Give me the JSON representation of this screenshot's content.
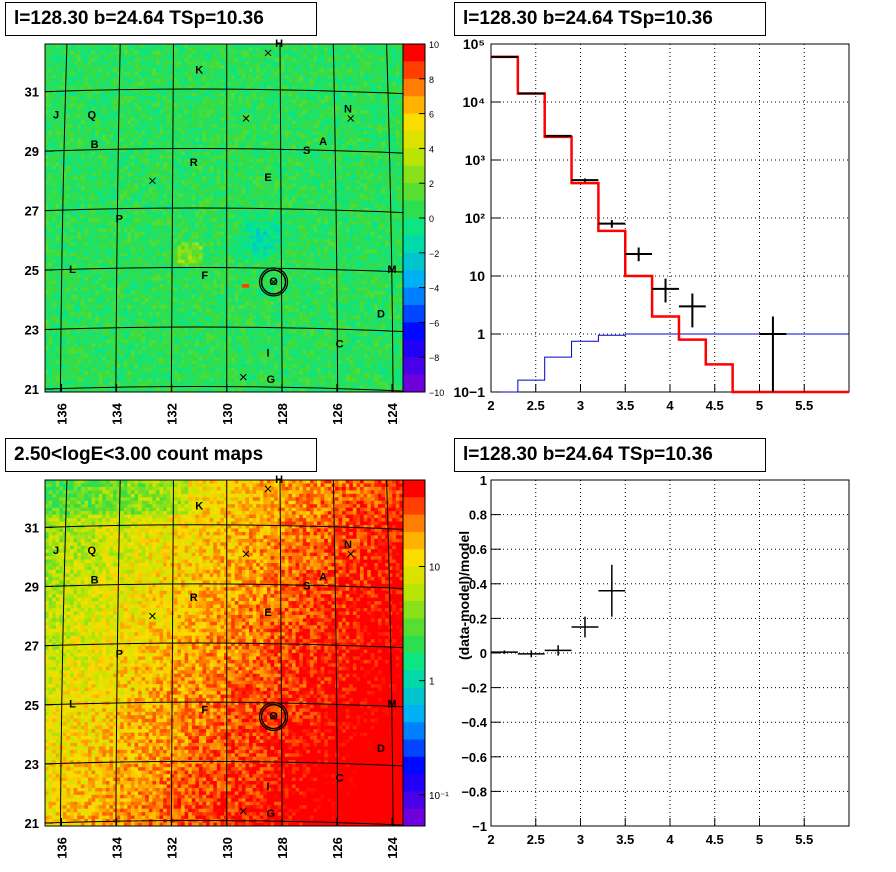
{
  "panels": {
    "tl_title": "l=128.30 b=24.64 TSp=10.36",
    "tr_title": "l=128.30 b=24.64 TSp=10.36",
    "bl_title": "2.50<logE<3.00 count maps",
    "br_title": "l=128.30 b=24.64 TSp=10.36"
  },
  "colors": {
    "data": "#000000",
    "model": "#ff0000",
    "background": "#0000cc"
  },
  "chart_data": [
    {
      "type": "heatmap",
      "title": "l=128.30 b=24.64 TSp=10.36",
      "x_ticks": [
        "136",
        "134",
        "132",
        "130",
        "128",
        "126",
        "124"
      ],
      "y_ticks": [
        "31",
        "29",
        "27",
        "25",
        "23",
        "21"
      ],
      "xlim": [
        136.6,
        123.6
      ],
      "ylim": [
        20.9,
        32.6
      ],
      "colorbar_ticks": [
        "10",
        "8",
        "6",
        "4",
        "2",
        "0",
        "−2",
        "−4",
        "−6",
        "−8",
        "−10"
      ],
      "colorbar_range": [
        -10,
        10
      ],
      "labels": [
        {
          "t": "H",
          "l": 128.1,
          "b": 32.5
        },
        {
          "t": "K",
          "l": 131.0,
          "b": 31.6
        },
        {
          "t": "N",
          "l": 125.6,
          "b": 30.3
        },
        {
          "t": "J",
          "l": 136.2,
          "b": 30.1
        },
        {
          "t": "Q",
          "l": 134.9,
          "b": 30.1
        },
        {
          "t": "B",
          "l": 134.8,
          "b": 29.1
        },
        {
          "t": "A",
          "l": 126.5,
          "b": 29.2
        },
        {
          "t": "S",
          "l": 127.1,
          "b": 28.9
        },
        {
          "t": "R",
          "l": 131.2,
          "b": 28.5
        },
        {
          "t": "E",
          "l": 128.5,
          "b": 28.0
        },
        {
          "t": "P",
          "l": 133.9,
          "b": 26.6
        },
        {
          "t": "L",
          "l": 135.6,
          "b": 24.9
        },
        {
          "t": "F",
          "l": 130.8,
          "b": 24.7
        },
        {
          "t": "O",
          "l": 128.3,
          "b": 24.5
        },
        {
          "t": "M",
          "l": 124.0,
          "b": 24.9
        },
        {
          "t": "D",
          "l": 124.4,
          "b": 23.4
        },
        {
          "t": "C",
          "l": 125.9,
          "b": 22.4
        },
        {
          "t": "I",
          "l": 128.5,
          "b": 22.1
        },
        {
          "t": "G",
          "l": 128.4,
          "b": 21.2
        }
      ],
      "crosses": [
        {
          "l": 128.5,
          "b": 32.3
        },
        {
          "l": 129.3,
          "b": 30.1
        },
        {
          "l": 125.5,
          "b": 30.1
        },
        {
          "l": 132.7,
          "b": 28.0
        },
        {
          "l": 129.4,
          "b": 21.4
        },
        {
          "l": 128.3,
          "b": 24.6
        }
      ],
      "circle": {
        "l": 128.3,
        "b": 24.6,
        "r_deg": 0.3
      }
    },
    {
      "type": "line",
      "title": "l=128.30 b=24.64 TSp=10.36",
      "xlim": [
        2,
        6.0
      ],
      "ylim": [
        0.1,
        100000
      ],
      "yscale": "log",
      "x_ticks": [
        "2",
        "2.5",
        "3",
        "3.5",
        "4",
        "4.5",
        "5",
        "5.5"
      ],
      "y_ticks": [
        "10−1",
        "1",
        "10",
        "10²",
        "10³",
        "10⁴",
        "10⁵"
      ],
      "grid": true,
      "model_hist": {
        "edges": [
          2.0,
          2.3,
          2.6,
          2.9,
          3.2,
          3.5,
          3.8,
          4.1,
          4.4,
          4.7,
          5.0,
          6.0
        ],
        "values": [
          60000,
          14000,
          2500,
          400,
          60,
          10,
          2,
          0.8,
          0.3,
          0.1,
          0.1
        ]
      },
      "background_hist": {
        "edges": [
          2.0,
          2.3,
          2.6,
          2.9,
          3.2,
          3.5,
          6.0
        ],
        "values": [
          0.1,
          0.16,
          0.4,
          0.75,
          0.95,
          1.0
        ]
      },
      "data_points": [
        {
          "x": 2.15,
          "y": 60000,
          "xerr": 0.15,
          "ylo": 58000,
          "yhi": 62000
        },
        {
          "x": 2.45,
          "y": 14000,
          "xerr": 0.15,
          "ylo": 13500,
          "yhi": 14500
        },
        {
          "x": 2.75,
          "y": 2600,
          "xerr": 0.15,
          "ylo": 2500,
          "yhi": 2700
        },
        {
          "x": 3.05,
          "y": 450,
          "xerr": 0.15,
          "ylo": 420,
          "yhi": 480
        },
        {
          "x": 3.35,
          "y": 80,
          "xerr": 0.15,
          "ylo": 68,
          "yhi": 92
        },
        {
          "x": 3.65,
          "y": 24,
          "xerr": 0.15,
          "ylo": 18,
          "yhi": 31
        },
        {
          "x": 3.95,
          "y": 6,
          "xerr": 0.15,
          "ylo": 3.5,
          "yhi": 9
        },
        {
          "x": 4.25,
          "y": 3,
          "xerr": 0.15,
          "ylo": 1.3,
          "yhi": 5
        },
        {
          "x": 5.15,
          "y": 1,
          "xerr": 0.15,
          "ylo": 0.1,
          "yhi": 2
        }
      ]
    },
    {
      "type": "heatmap",
      "title": "2.50<logE<3.00 count maps",
      "x_ticks": [
        "136",
        "134",
        "132",
        "130",
        "128",
        "126",
        "124"
      ],
      "y_ticks": [
        "31",
        "29",
        "27",
        "25",
        "23",
        "21"
      ],
      "xlim": [
        136.6,
        123.6
      ],
      "ylim": [
        20.9,
        32.6
      ],
      "colorbar_ticks": [
        "10",
        "1",
        "10⁻¹"
      ],
      "colorbar_scale": "log"
    },
    {
      "type": "scatter",
      "title": "l=128.30 b=24.64 TSp=10.36",
      "ylabel": "(data-model)/model",
      "xlim": [
        2,
        6.0
      ],
      "ylim": [
        -1,
        1
      ],
      "x_ticks": [
        "2",
        "2.5",
        "3",
        "3.5",
        "4",
        "4.5",
        "5",
        "5.5"
      ],
      "y_ticks": [
        "1",
        "0.8",
        "0.6",
        "0.4",
        "0.2",
        "0",
        "−0.2",
        "−0.4",
        "−0.6",
        "−0.8",
        "−1"
      ],
      "grid": true,
      "points": [
        {
          "x": 2.15,
          "y": 0.005,
          "xerr": 0.15,
          "yerr": 0.01
        },
        {
          "x": 2.45,
          "y": -0.005,
          "xerr": 0.15,
          "yerr": 0.02
        },
        {
          "x": 2.75,
          "y": 0.015,
          "xerr": 0.15,
          "yerr": 0.03
        },
        {
          "x": 3.05,
          "y": 0.15,
          "xerr": 0.15,
          "yerr": 0.06
        },
        {
          "x": 3.35,
          "y": 0.36,
          "xerr": 0.15,
          "yerr": 0.15
        }
      ]
    }
  ]
}
